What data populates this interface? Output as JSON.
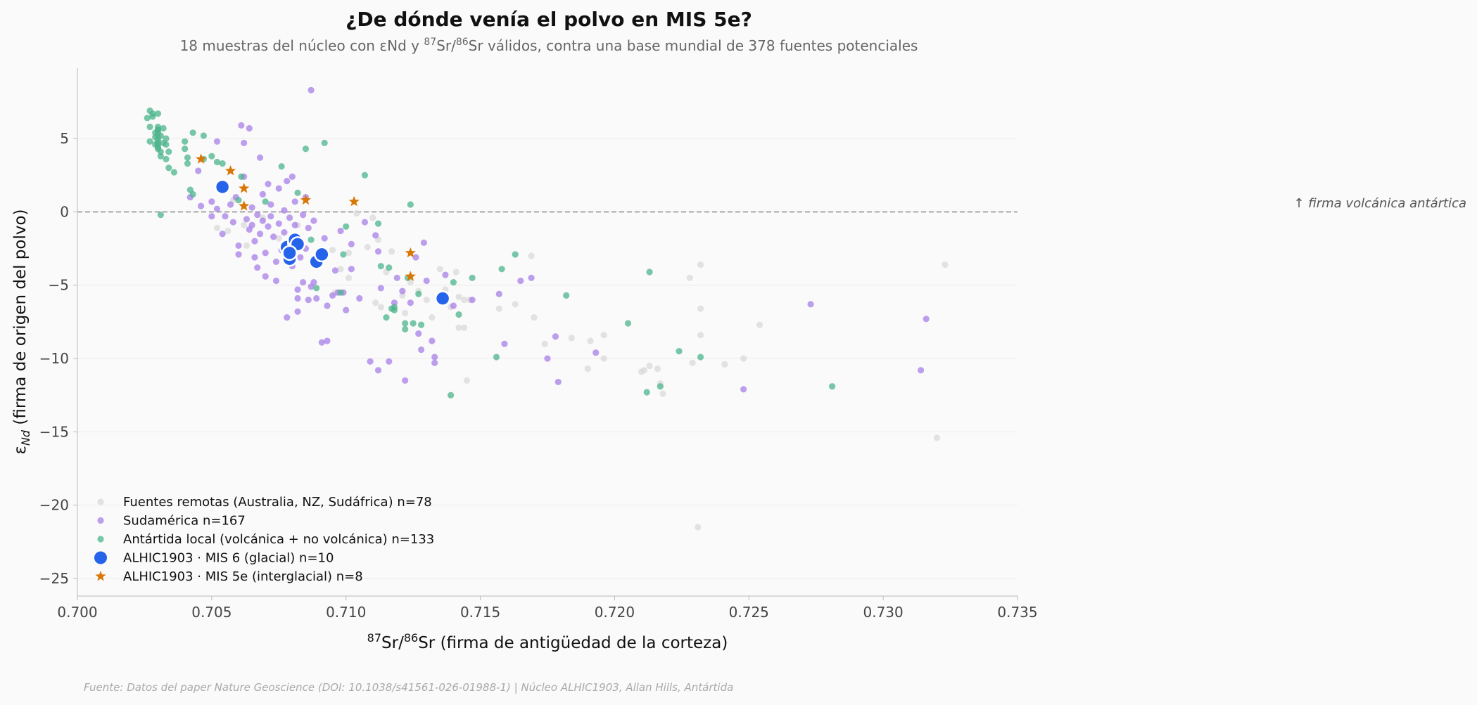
{
  "chart_data": {
    "type": "scatter",
    "title": "¿De dónde venía el polvo en MIS 5e?",
    "subtitle": {
      "before": "18 muestras del núcleo con εNd y ",
      "sup1": "87",
      "mid": "Sr/",
      "sup2": "86",
      "after": "Sr válidos, contra una base mundial de 378 fuentes potenciales"
    },
    "xlabel": {
      "sup1": "87",
      "mid": "Sr/",
      "sup2": "86",
      "after": "Sr (firma de antigüedad de la corteza)"
    },
    "ylabel": {
      "prefix": "ε",
      "sub": "Nd",
      "after": " (firma de origen del polvo)"
    },
    "xlim": [
      0.7,
      0.735
    ],
    "ylim": [
      -26.2,
      9.8
    ],
    "x_ticks": [
      "0.700",
      "0.705",
      "0.710",
      "0.715",
      "0.720",
      "0.725",
      "0.730",
      "0.735"
    ],
    "y_ticks": [
      "−25",
      "−20",
      "−15",
      "−10",
      "−5",
      "0",
      "5"
    ],
    "grid": "horizontal",
    "reference_line": {
      "y": 0,
      "style": "dashed",
      "label": "↑ firma volcánica antártica"
    },
    "legend_position": "lower-left",
    "series": [
      {
        "name": "Fuentes remotas (Australia, NZ, Sudáfrica)  n=78",
        "color": "#d9d9d9",
        "marker": "circle",
        "points": [
          [
            0.7052,
            -1.1
          ],
          [
            0.7056,
            -1.3
          ],
          [
            0.7058,
            0.8
          ],
          [
            0.7062,
            -0.9
          ],
          [
            0.7063,
            -2.3
          ],
          [
            0.7069,
            -0.4
          ],
          [
            0.7075,
            -1.8
          ],
          [
            0.7082,
            -0.9
          ],
          [
            0.7091,
            -3.2
          ],
          [
            0.7095,
            -2.6
          ],
          [
            0.7096,
            -5.5
          ],
          [
            0.7098,
            -3.9
          ],
          [
            0.7101,
            -2.8
          ],
          [
            0.7101,
            -4.5
          ],
          [
            0.7104,
            -0.1
          ],
          [
            0.7108,
            -2.4
          ],
          [
            0.711,
            -0.4
          ],
          [
            0.7111,
            -6.2
          ],
          [
            0.7112,
            -1.9
          ],
          [
            0.7113,
            -6.5
          ],
          [
            0.7115,
            -4.1
          ],
          [
            0.7117,
            -2.7
          ],
          [
            0.7121,
            -5.7
          ],
          [
            0.7122,
            -6.9
          ],
          [
            0.7124,
            -4.8
          ],
          [
            0.7127,
            -5.4
          ],
          [
            0.713,
            -6.0
          ],
          [
            0.7132,
            -7.2
          ],
          [
            0.7135,
            -3.9
          ],
          [
            0.7137,
            -5.3
          ],
          [
            0.7139,
            -6.5
          ],
          [
            0.7141,
            -4.1
          ],
          [
            0.7142,
            -7.9
          ],
          [
            0.7142,
            -5.8
          ],
          [
            0.7144,
            -6.0
          ],
          [
            0.7144,
            -7.9
          ],
          [
            0.7146,
            -6.0
          ],
          [
            0.7145,
            -11.5
          ],
          [
            0.7157,
            -6.6
          ],
          [
            0.7163,
            -6.3
          ],
          [
            0.7169,
            -3.0
          ],
          [
            0.717,
            -7.2
          ],
          [
            0.7174,
            -9.0
          ],
          [
            0.7184,
            -8.6
          ],
          [
            0.719,
            -10.7
          ],
          [
            0.7191,
            -8.8
          ],
          [
            0.7196,
            -10.0
          ],
          [
            0.7196,
            -8.4
          ],
          [
            0.721,
            -10.9
          ],
          [
            0.7211,
            -10.8
          ],
          [
            0.7213,
            -10.5
          ],
          [
            0.7216,
            -10.7
          ],
          [
            0.7217,
            -11.7
          ],
          [
            0.7218,
            -12.4
          ],
          [
            0.7228,
            -4.5
          ],
          [
            0.7229,
            -10.3
          ],
          [
            0.7231,
            -21.5
          ],
          [
            0.7232,
            -3.6
          ],
          [
            0.7232,
            -6.6
          ],
          [
            0.7232,
            -8.4
          ],
          [
            0.7241,
            -10.4
          ],
          [
            0.7248,
            -10.0
          ],
          [
            0.7254,
            -7.7
          ],
          [
            0.732,
            -15.4
          ],
          [
            0.7323,
            -3.6
          ]
        ]
      },
      {
        "name": "Sudamérica  n=167",
        "color": "#a77fe8",
        "marker": "circle",
        "points": [
          [
            0.7042,
            1.0
          ],
          [
            0.7045,
            2.8
          ],
          [
            0.7046,
            0.4
          ],
          [
            0.705,
            0.7
          ],
          [
            0.705,
            -0.3
          ],
          [
            0.7052,
            4.8
          ],
          [
            0.7052,
            0.2
          ],
          [
            0.7054,
            -1.5
          ],
          [
            0.7055,
            -0.3
          ],
          [
            0.7057,
            0.5
          ],
          [
            0.7058,
            -0.7
          ],
          [
            0.7059,
            1.0
          ],
          [
            0.706,
            -2.3
          ],
          [
            0.706,
            -2.9
          ],
          [
            0.7061,
            5.9
          ],
          [
            0.7062,
            4.7
          ],
          [
            0.7062,
            2.4
          ],
          [
            0.7063,
            -0.5
          ],
          [
            0.7064,
            -1.2
          ],
          [
            0.7064,
            5.7
          ],
          [
            0.7065,
            0.3
          ],
          [
            0.7065,
            -0.9
          ],
          [
            0.7066,
            -2.0
          ],
          [
            0.7066,
            -3.1
          ],
          [
            0.7067,
            -3.8
          ],
          [
            0.7067,
            -0.2
          ],
          [
            0.7068,
            -1.5
          ],
          [
            0.7068,
            3.7
          ],
          [
            0.7069,
            1.2
          ],
          [
            0.7069,
            -0.6
          ],
          [
            0.707,
            -2.8
          ],
          [
            0.707,
            -4.4
          ],
          [
            0.7071,
            -1.0
          ],
          [
            0.7071,
            1.9
          ],
          [
            0.7072,
            0.5
          ],
          [
            0.7072,
            -0.3
          ],
          [
            0.7073,
            -1.7
          ],
          [
            0.7074,
            -3.4
          ],
          [
            0.7074,
            -4.7
          ],
          [
            0.7075,
            1.6
          ],
          [
            0.7075,
            -0.8
          ],
          [
            0.7076,
            -2.6
          ],
          [
            0.7077,
            0.1
          ],
          [
            0.7077,
            -1.4
          ],
          [
            0.7078,
            2.1
          ],
          [
            0.7078,
            -3.1
          ],
          [
            0.7078,
            -7.2
          ],
          [
            0.7079,
            -0.4
          ],
          [
            0.708,
            -2.2
          ],
          [
            0.708,
            -3.7
          ],
          [
            0.708,
            2.4
          ],
          [
            0.7081,
            0.7
          ],
          [
            0.7081,
            -0.9
          ],
          [
            0.7082,
            -5.3
          ],
          [
            0.7082,
            -6.8
          ],
          [
            0.7082,
            -5.9
          ],
          [
            0.7083,
            -1.9
          ],
          [
            0.7083,
            -3.1
          ],
          [
            0.7084,
            -4.8
          ],
          [
            0.7084,
            -0.2
          ],
          [
            0.7085,
            1.0
          ],
          [
            0.7085,
            -2.5
          ],
          [
            0.7086,
            -6.0
          ],
          [
            0.7086,
            -1.1
          ],
          [
            0.7087,
            -5.1
          ],
          [
            0.7087,
            8.3
          ],
          [
            0.7088,
            -0.6
          ],
          [
            0.7088,
            -4.8
          ],
          [
            0.7089,
            -5.9
          ],
          [
            0.709,
            -2.9
          ],
          [
            0.7091,
            -8.9
          ],
          [
            0.7092,
            -1.8
          ],
          [
            0.7093,
            -8.8
          ],
          [
            0.7093,
            -6.4
          ],
          [
            0.7095,
            -5.7
          ],
          [
            0.7096,
            -4.0
          ],
          [
            0.7097,
            -5.5
          ],
          [
            0.7098,
            -1.3
          ],
          [
            0.7099,
            -5.5
          ],
          [
            0.71,
            -6.7
          ],
          [
            0.7102,
            -2.2
          ],
          [
            0.7102,
            -3.9
          ],
          [
            0.7105,
            -5.9
          ],
          [
            0.7107,
            -0.7
          ],
          [
            0.7109,
            -10.2
          ],
          [
            0.7111,
            -1.6
          ],
          [
            0.7112,
            -2.7
          ],
          [
            0.7112,
            -10.8
          ],
          [
            0.7113,
            -5.2
          ],
          [
            0.7116,
            -10.2
          ],
          [
            0.7118,
            -6.2
          ],
          [
            0.7119,
            -4.5
          ],
          [
            0.7121,
            -5.4
          ],
          [
            0.7122,
            -11.5
          ],
          [
            0.7124,
            -6.2
          ],
          [
            0.7126,
            -3.1
          ],
          [
            0.7127,
            -8.3
          ],
          [
            0.7128,
            -9.4
          ],
          [
            0.7129,
            -2.1
          ],
          [
            0.713,
            -4.7
          ],
          [
            0.7132,
            -8.8
          ],
          [
            0.7133,
            -9.9
          ],
          [
            0.7133,
            -10.3
          ],
          [
            0.7137,
            -4.3
          ],
          [
            0.714,
            -6.4
          ],
          [
            0.7147,
            -6.0
          ],
          [
            0.7157,
            -5.6
          ],
          [
            0.7159,
            -9.0
          ],
          [
            0.7165,
            -4.7
          ],
          [
            0.7169,
            -4.5
          ],
          [
            0.7175,
            -10.0
          ],
          [
            0.7178,
            -8.5
          ],
          [
            0.7179,
            -11.6
          ],
          [
            0.7193,
            -9.6
          ],
          [
            0.7248,
            -12.1
          ],
          [
            0.7273,
            -6.3
          ],
          [
            0.7314,
            -10.8
          ],
          [
            0.7316,
            -7.3
          ]
        ]
      },
      {
        "name": "Antártida local (volcánica + no volcánica)  n=133",
        "color": "#4cb48c",
        "marker": "circle",
        "points": [
          [
            0.7026,
            6.4
          ],
          [
            0.7027,
            5.8
          ],
          [
            0.7027,
            4.8
          ],
          [
            0.7027,
            6.9
          ],
          [
            0.7028,
            6.7
          ],
          [
            0.7028,
            6.5
          ],
          [
            0.7029,
            5.4
          ],
          [
            0.7029,
            4.6
          ],
          [
            0.7029,
            5.1
          ],
          [
            0.703,
            6.7
          ],
          [
            0.703,
            4.4
          ],
          [
            0.703,
            5.8
          ],
          [
            0.703,
            4.9
          ],
          [
            0.703,
            5.6
          ],
          [
            0.703,
            5.4
          ],
          [
            0.703,
            5.1
          ],
          [
            0.703,
            4.7
          ],
          [
            0.703,
            4.6
          ],
          [
            0.703,
            4.3
          ],
          [
            0.703,
            5.6
          ],
          [
            0.7031,
            4.1
          ],
          [
            0.7031,
            3.8
          ],
          [
            0.7031,
            5.2
          ],
          [
            0.7031,
            -0.2
          ],
          [
            0.7032,
            4.7
          ],
          [
            0.7032,
            5.7
          ],
          [
            0.7033,
            3.6
          ],
          [
            0.7033,
            5.0
          ],
          [
            0.7033,
            4.6
          ],
          [
            0.7034,
            3.0
          ],
          [
            0.7034,
            4.1
          ],
          [
            0.7036,
            2.7
          ],
          [
            0.704,
            4.8
          ],
          [
            0.704,
            4.3
          ],
          [
            0.7041,
            3.7
          ],
          [
            0.7041,
            3.3
          ],
          [
            0.7042,
            1.5
          ],
          [
            0.7043,
            5.4
          ],
          [
            0.7043,
            1.2
          ],
          [
            0.7047,
            5.2
          ],
          [
            0.7047,
            3.6
          ],
          [
            0.705,
            3.8
          ],
          [
            0.7052,
            3.4
          ],
          [
            0.7054,
            3.3
          ],
          [
            0.706,
            0.8
          ],
          [
            0.7061,
            2.4
          ],
          [
            0.707,
            0.7
          ],
          [
            0.7076,
            3.1
          ],
          [
            0.7082,
            1.3
          ],
          [
            0.7085,
            4.3
          ],
          [
            0.7087,
            -1.9
          ],
          [
            0.7089,
            -5.2
          ],
          [
            0.7092,
            4.7
          ],
          [
            0.7098,
            -5.5
          ],
          [
            0.7099,
            -2.9
          ],
          [
            0.71,
            -1.0
          ],
          [
            0.7107,
            2.5
          ],
          [
            0.7112,
            -0.8
          ],
          [
            0.7113,
            -3.7
          ],
          [
            0.7115,
            -7.2
          ],
          [
            0.7116,
            -3.8
          ],
          [
            0.7117,
            -6.6
          ],
          [
            0.7118,
            -6.7
          ],
          [
            0.7118,
            -6.5
          ],
          [
            0.7122,
            -8.0
          ],
          [
            0.7122,
            -7.6
          ],
          [
            0.7123,
            -4.5
          ],
          [
            0.7124,
            0.5
          ],
          [
            0.7125,
            -7.6
          ],
          [
            0.7127,
            -5.6
          ],
          [
            0.7128,
            -7.7
          ],
          [
            0.7139,
            -12.5
          ],
          [
            0.714,
            -4.8
          ],
          [
            0.7142,
            -7.0
          ],
          [
            0.7147,
            -4.5
          ],
          [
            0.7156,
            -9.9
          ],
          [
            0.7158,
            -3.9
          ],
          [
            0.7163,
            -2.9
          ],
          [
            0.7182,
            -5.7
          ],
          [
            0.7205,
            -7.6
          ],
          [
            0.7212,
            -12.3
          ],
          [
            0.7213,
            -4.1
          ],
          [
            0.7217,
            -11.9
          ],
          [
            0.7224,
            -9.5
          ],
          [
            0.7232,
            -9.9
          ],
          [
            0.7281,
            -11.9
          ]
        ]
      },
      {
        "name": "ALHIC1903 · MIS 6 (glacial)  n=10",
        "color": "#2563eb",
        "marker": "big-circle",
        "points": [
          [
            0.7054,
            1.7
          ],
          [
            0.7078,
            -2.4
          ],
          [
            0.7079,
            -3.2
          ],
          [
            0.7081,
            -2.1
          ],
          [
            0.7081,
            -1.9
          ],
          [
            0.7082,
            -2.2
          ],
          [
            0.7089,
            -3.4
          ],
          [
            0.7091,
            -2.9
          ],
          [
            0.7079,
            -2.8
          ],
          [
            0.7136,
            -5.9
          ]
        ]
      },
      {
        "name": "ALHIC1903 · MIS 5e (interglacial)  n=8",
        "color": "#d97706",
        "marker": "star",
        "points": [
          [
            0.7046,
            3.6
          ],
          [
            0.7057,
            2.8
          ],
          [
            0.7062,
            1.6
          ],
          [
            0.7062,
            0.4
          ],
          [
            0.7085,
            0.8
          ],
          [
            0.7103,
            0.7
          ],
          [
            0.7124,
            -2.8
          ],
          [
            0.7124,
            -4.4
          ]
        ]
      }
    ]
  },
  "source": "Fuente: Datos del paper Nature Geoscience (DOI: 10.1038/s41561-026-01988-1) | Núcleo ALHIC1903, Allan Hills, Antártida"
}
